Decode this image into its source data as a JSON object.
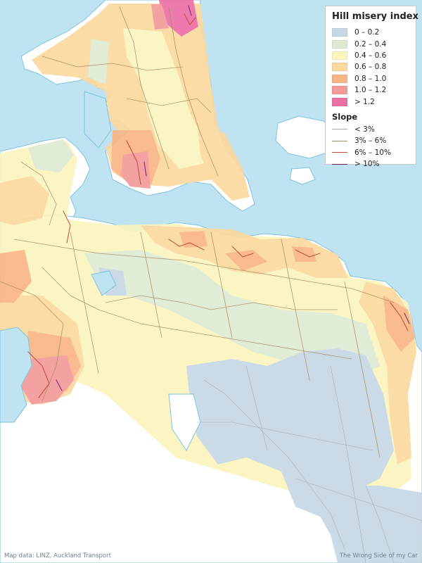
{
  "legend": {
    "title": "Hill misery index",
    "classes": [
      {
        "label": "0 – 0.2",
        "color": "#c6d8e6"
      },
      {
        "label": "0.2 – 0.4",
        "color": "#deebd2"
      },
      {
        "label": "0.4 – 0.6",
        "color": "#fbf5bf"
      },
      {
        "label": "0.6 – 0.8",
        "color": "#fbd99f"
      },
      {
        "label": "0.8 – 1.0",
        "color": "#f8b585"
      },
      {
        "label": "1.0 – 1.2",
        "color": "#f39a9a"
      },
      {
        "label": "> 1.2",
        "color": "#ec6fa6"
      }
    ],
    "slope_title": "Slope",
    "slopes": [
      {
        "label": "< 3%",
        "color": "#a8a8a8"
      },
      {
        "label": "3% – 6%",
        "color": "#a6895c"
      },
      {
        "label": "6% – 10%",
        "color": "#c0473a"
      },
      {
        "label": "> 10%",
        "color": "#6d1f6b"
      }
    ]
  },
  "credits": {
    "left": "Map data: LINZ, Auckland Transport",
    "right": "The Wrong Side of my Car"
  },
  "colors": {
    "water": "#bfe3f0",
    "land": "#ffffff",
    "coast": "#7dc3dc"
  }
}
